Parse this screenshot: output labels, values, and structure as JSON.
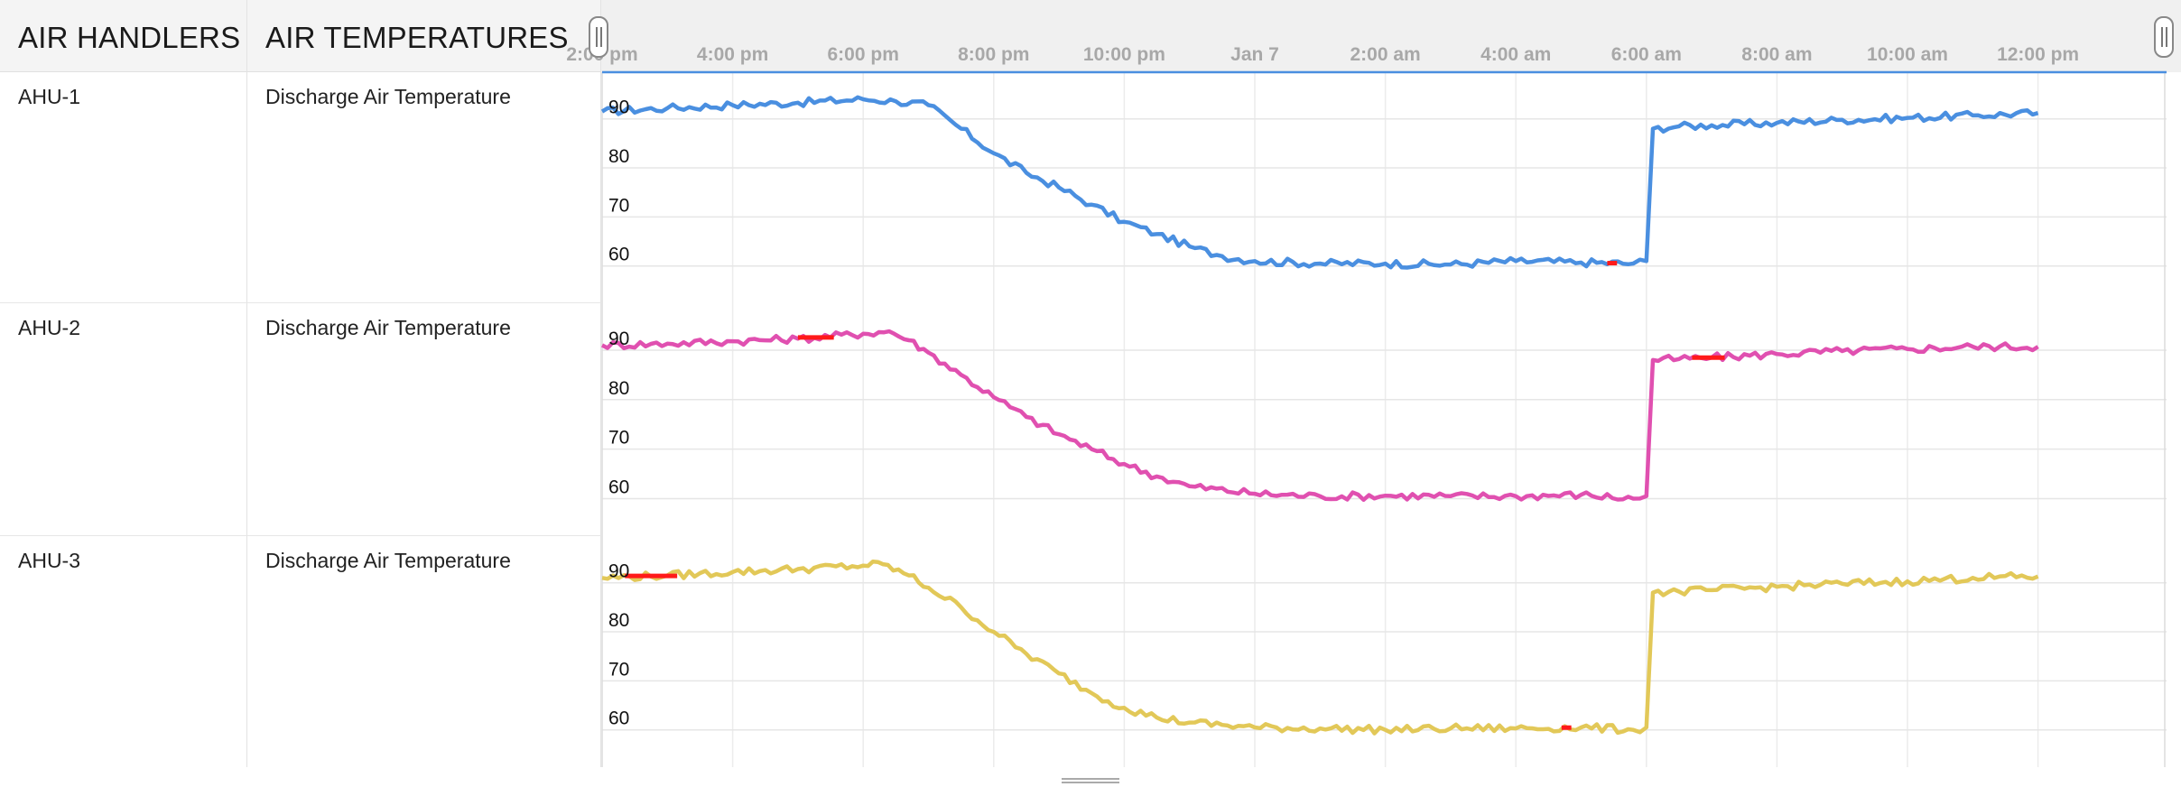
{
  "header": {
    "handlers_label": "AIR HANDLERS",
    "temps_label": "AIR TEMPERATURES"
  },
  "rows": [
    {
      "handler": "AHU-1",
      "point": "Discharge Air Temperature"
    },
    {
      "handler": "AHU-2",
      "point": "Discharge Air Temperature"
    },
    {
      "handler": "AHU-3",
      "point": "Discharge Air Temperature"
    }
  ],
  "chart_data": {
    "type": "line",
    "x_tick_labels": [
      "2:00 pm",
      "4:00 pm",
      "6:00 pm",
      "8:00 pm",
      "10:00 pm",
      "Jan 7",
      "2:00 am",
      "4:00 am",
      "6:00 am",
      "8:00 am",
      "10:00 am",
      "12:00 pm"
    ],
    "x_range_hours": [
      14.0,
      36.0
    ],
    "y_ticks": [
      60,
      70,
      80,
      90
    ],
    "ylim": [
      57,
      94
    ],
    "alarm_color": "#ff1a1a",
    "series": [
      {
        "color": "#4a8fe0",
        "points": [
          [
            14.0,
            91.5
          ],
          [
            15.0,
            92.2
          ],
          [
            16.0,
            92.8
          ],
          [
            17.0,
            93.3
          ],
          [
            18.0,
            94.0
          ],
          [
            18.5,
            93.6
          ],
          [
            19.0,
            92.8
          ],
          [
            19.5,
            88.0
          ],
          [
            20.0,
            83.0
          ],
          [
            20.5,
            79.0
          ],
          [
            21.0,
            76.0
          ],
          [
            21.5,
            72.5
          ],
          [
            22.0,
            69.0
          ],
          [
            22.5,
            66.5
          ],
          [
            23.0,
            64.0
          ],
          [
            23.5,
            62.0
          ],
          [
            24.0,
            61.0
          ],
          [
            25.0,
            60.5
          ],
          [
            26.0,
            60.5
          ],
          [
            27.0,
            60.3
          ],
          [
            28.0,
            61.0
          ],
          [
            29.0,
            60.7
          ],
          [
            29.8,
            60.5
          ],
          [
            30.0,
            61.0
          ],
          [
            30.1,
            88.0
          ],
          [
            30.5,
            88.5
          ],
          [
            31.0,
            88.7
          ],
          [
            32.0,
            89.2
          ],
          [
            33.0,
            89.8
          ],
          [
            34.0,
            90.2
          ],
          [
            35.0,
            90.7
          ],
          [
            36.0,
            91.2
          ]
        ],
        "alarms": [
          [
            29.4,
            29.55
          ]
        ]
      },
      {
        "color": "#e050b0",
        "points": [
          [
            14.0,
            91.0
          ],
          [
            15.0,
            91.3
          ],
          [
            16.0,
            91.8
          ],
          [
            17.0,
            92.3
          ],
          [
            18.0,
            93.3
          ],
          [
            18.4,
            93.8
          ],
          [
            18.7,
            92.0
          ],
          [
            19.0,
            89.5
          ],
          [
            19.5,
            85.0
          ],
          [
            20.0,
            80.5
          ],
          [
            20.5,
            76.5
          ],
          [
            21.0,
            73.0
          ],
          [
            21.5,
            70.0
          ],
          [
            22.0,
            67.0
          ],
          [
            22.5,
            64.5
          ],
          [
            23.0,
            62.5
          ],
          [
            24.0,
            61.0
          ],
          [
            25.0,
            60.5
          ],
          [
            26.0,
            60.6
          ],
          [
            27.0,
            60.5
          ],
          [
            28.0,
            60.5
          ],
          [
            29.0,
            60.8
          ],
          [
            29.8,
            60.0
          ],
          [
            30.0,
            60.5
          ],
          [
            30.1,
            88.0
          ],
          [
            30.5,
            88.2
          ],
          [
            31.0,
            88.5
          ],
          [
            32.0,
            89.2
          ],
          [
            33.0,
            89.8
          ],
          [
            34.0,
            90.2
          ],
          [
            35.0,
            90.7
          ],
          [
            36.0,
            90.7
          ]
        ],
        "alarms": [
          [
            17.0,
            17.55
          ],
          [
            30.7,
            31.2
          ]
        ]
      },
      {
        "color": "#e2c858",
        "points": [
          [
            14.0,
            91.0
          ],
          [
            15.0,
            91.5
          ],
          [
            16.0,
            92.2
          ],
          [
            17.0,
            92.8
          ],
          [
            18.0,
            93.5
          ],
          [
            18.3,
            93.8
          ],
          [
            18.7,
            91.5
          ],
          [
            19.0,
            89.0
          ],
          [
            19.5,
            85.0
          ],
          [
            20.0,
            80.0
          ],
          [
            20.5,
            75.5
          ],
          [
            21.0,
            71.5
          ],
          [
            21.5,
            67.5
          ],
          [
            22.0,
            64.5
          ],
          [
            22.5,
            62.5
          ],
          [
            23.0,
            61.5
          ],
          [
            24.0,
            60.5
          ],
          [
            25.0,
            60.3
          ],
          [
            26.0,
            60.0
          ],
          [
            27.0,
            60.3
          ],
          [
            28.0,
            60.3
          ],
          [
            29.0,
            60.5
          ],
          [
            29.8,
            60.0
          ],
          [
            30.0,
            60.5
          ],
          [
            30.1,
            88.0
          ],
          [
            30.5,
            88.2
          ],
          [
            31.0,
            88.5
          ],
          [
            32.0,
            89.2
          ],
          [
            33.0,
            89.8
          ],
          [
            34.0,
            90.3
          ],
          [
            35.0,
            91.0
          ],
          [
            36.0,
            91.3
          ]
        ],
        "alarms": [
          [
            14.35,
            15.15
          ],
          [
            28.7,
            28.85
          ]
        ]
      }
    ]
  }
}
